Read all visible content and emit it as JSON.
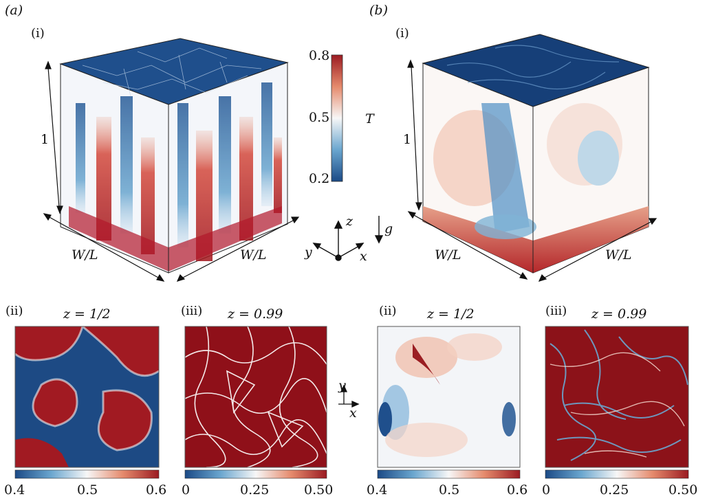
{
  "panel_a": {
    "label": "(a)",
    "sub_i": "(i)",
    "height_label": "1",
    "width_label_left": "W/L",
    "width_label_right": "W/L",
    "colorbar": {
      "top": "0.8",
      "mid": "0.5",
      "bottom": "0.2",
      "var": "T"
    },
    "axes": {
      "z": "z",
      "y": "y",
      "x": "x",
      "g": "g"
    },
    "sub_ii": {
      "label": "(ii)",
      "title": "z = 1/2",
      "ticks": [
        "0.4",
        "0.5",
        "0.6"
      ]
    },
    "sub_iii": {
      "label": "(iii)",
      "title": "z = 0.99",
      "ticks": [
        "0",
        "0.25",
        "0.50"
      ]
    }
  },
  "panel_b": {
    "label": "(b)",
    "sub_i": "(i)",
    "height_label": "1",
    "width_label_left": "W/L",
    "width_label_right": "W/L",
    "axes2d": {
      "y": "y",
      "x": "x"
    },
    "sub_ii": {
      "label": "(ii)",
      "title": "z = 1/2",
      "ticks": [
        "0.4",
        "0.5",
        "0.6"
      ]
    },
    "sub_iii": {
      "label": "(iii)",
      "title": "z = 0.99",
      "ticks": [
        "0",
        "0.25",
        "0.50"
      ]
    }
  },
  "colors": {
    "hot": "#b2182b",
    "cold": "#1b4a86",
    "neutral": "#f7f7f7"
  }
}
